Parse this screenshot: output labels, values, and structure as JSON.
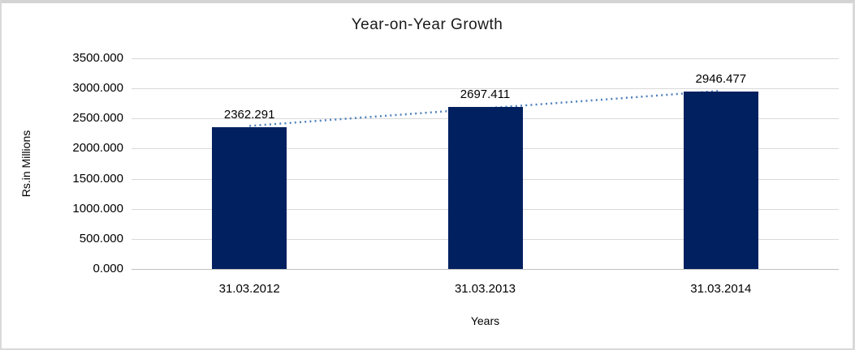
{
  "chart_data": {
    "type": "bar",
    "title": "Year-on-Year Growth",
    "xlabel": "Years",
    "ylabel": "Rs.in Millions",
    "categories": [
      "31.03.2012",
      "31.03.2013",
      "31.03.2014"
    ],
    "values": [
      2362.291,
      2697.411,
      2946.477
    ],
    "data_labels": [
      "2362.291",
      "2697.411",
      "2946.477"
    ],
    "ylim": [
      0,
      3500
    ],
    "ytick_step": 500,
    "ytick_labels": [
      "3500.000",
      "3000.000",
      "2500.000",
      "2000.000",
      "1500.000",
      "1000.000",
      "500.000",
      "0.000"
    ],
    "grid": true,
    "legend": "none",
    "colors": {
      "bar": "#002060",
      "trendline": "#4f81bd",
      "gridline": "#d9d9d9",
      "axisline": "#c0c0c0",
      "text": "#000000",
      "frame_border": "#d9d9d9"
    },
    "trendline": {
      "type": "linear",
      "style": "dotted"
    }
  }
}
